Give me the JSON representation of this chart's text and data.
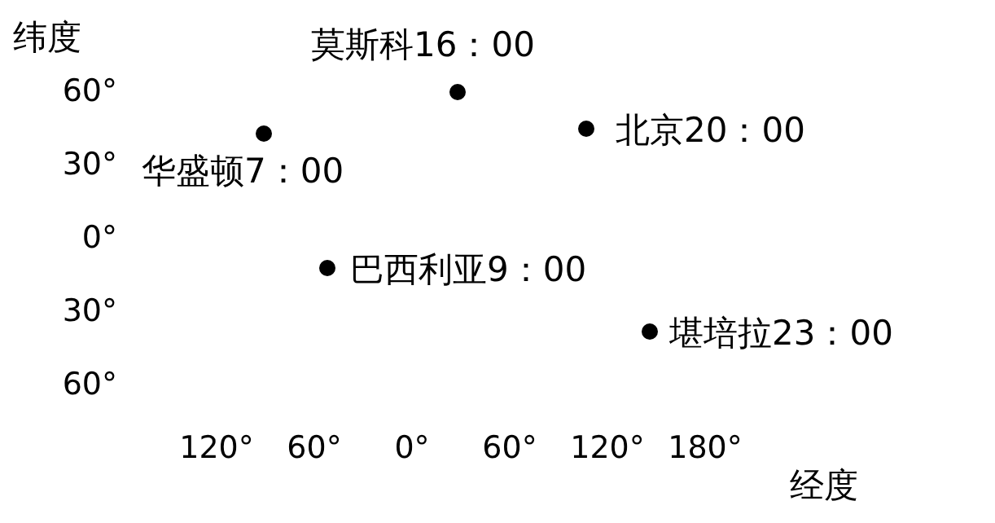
{
  "chart_data": {
    "type": "scatter",
    "xlabel": "经度",
    "ylabel": "纬度",
    "x": [
      -91,
      28,
      107,
      -52,
      146
    ],
    "values": [
      42,
      59,
      44,
      -13,
      -39
    ],
    "color": "#000000",
    "marker": "circle",
    "grid": false,
    "xlim": [
      -120,
      180
    ],
    "ylim": [
      -60,
      60
    ],
    "xticks": [
      {
        "value": -120,
        "label": "120°"
      },
      {
        "value": -60,
        "label": "60°"
      },
      {
        "value": 0,
        "label": "0°"
      },
      {
        "value": 60,
        "label": "60°"
      },
      {
        "value": 120,
        "label": "120°"
      },
      {
        "value": 180,
        "label": "180°"
      }
    ],
    "yticks": [
      {
        "value": 60,
        "label": "60°"
      },
      {
        "value": 30,
        "label": "30°"
      },
      {
        "value": 0,
        "label": "0°"
      },
      {
        "value": -30,
        "label": "30°"
      },
      {
        "value": -60,
        "label": "60°"
      }
    ],
    "annotations": [
      {
        "text": "华盛顿7：00",
        "x": -91,
        "y": 42
      },
      {
        "text": "莫斯科16：00",
        "x": 28,
        "y": 59
      },
      {
        "text": "北京20：00",
        "x": 107,
        "y": 44
      },
      {
        "text": "巴西利亚9：00",
        "x": -52,
        "y": -13
      },
      {
        "text": "堪培拉23：00",
        "x": 146,
        "y": -39
      }
    ]
  }
}
